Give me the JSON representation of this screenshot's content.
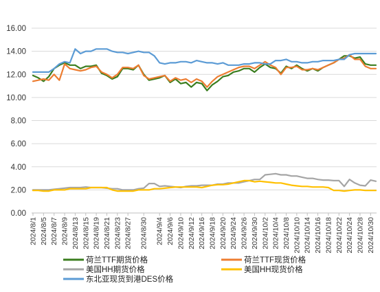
{
  "chart_data": {
    "type": "line",
    "title": "",
    "xlabel": "",
    "ylabel": "",
    "ylim": [
      0,
      16
    ],
    "y_ticks": [
      "0.00",
      "2.00",
      "4.00",
      "6.00",
      "8.00",
      "10.00",
      "12.00",
      "14.00",
      "16.00"
    ],
    "grid": "horizontal",
    "legend_position": "bottom",
    "x_tick_labels": [
      "2024/8/1",
      "2024/8/5",
      "2024/8/7",
      "2024/8/9",
      "2024/8/13",
      "2024/8/15",
      "2024/8/19",
      "2024/8/21",
      "2024/8/23",
      "2024/8/27",
      "2024/8/30",
      "2024/9/4",
      "2024/9/6",
      "2024/9/10",
      "2024/9/12",
      "2024/9/16",
      "2024/9/18",
      "2024/9/20",
      "2024/9/24",
      "2024/9/26",
      "2024/9/30",
      "2024/10/2",
      "2024/10/4",
      "2024/10/8",
      "2024/10/10",
      "2024/10/14",
      "2024/10/16",
      "2024/10/18",
      "2024/10/22",
      "2024/10/24",
      "2024/10/28",
      "2024/10/30"
    ],
    "x": [
      "2024/8/1",
      "2024/8/2",
      "2024/8/5",
      "2024/8/6",
      "2024/8/7",
      "2024/8/8",
      "2024/8/9",
      "2024/8/12",
      "2024/8/13",
      "2024/8/14",
      "2024/8/15",
      "2024/8/16",
      "2024/8/19",
      "2024/8/20",
      "2024/8/21",
      "2024/8/22",
      "2024/8/23",
      "2024/8/26",
      "2024/8/27",
      "2024/8/28",
      "2024/8/29",
      "2024/8/30",
      "2024/9/2",
      "2024/9/3",
      "2024/9/4",
      "2024/9/5",
      "2024/9/6",
      "2024/9/9",
      "2024/9/10",
      "2024/9/11",
      "2024/9/12",
      "2024/9/13",
      "2024/9/16",
      "2024/9/17",
      "2024/9/18",
      "2024/9/19",
      "2024/9/20",
      "2024/9/23",
      "2024/9/24",
      "2024/9/25",
      "2024/9/26",
      "2024/9/27",
      "2024/9/30",
      "2024/10/1",
      "2024/10/2",
      "2024/10/3",
      "2024/10/4",
      "2024/10/7",
      "2024/10/8",
      "2024/10/9",
      "2024/10/10",
      "2024/10/11",
      "2024/10/14",
      "2024/10/15",
      "2024/10/16",
      "2024/10/17",
      "2024/10/18",
      "2024/10/21",
      "2024/10/22",
      "2024/10/23",
      "2024/10/24",
      "2024/10/25",
      "2024/10/28",
      "2024/10/29",
      "2024/10/30",
      "2024/10/31"
    ],
    "series": [
      {
        "name": "荷兰TTF期货价格",
        "color": "#3a7d1e",
        "width": 2.2,
        "values": [
          11.9,
          11.7,
          11.4,
          11.8,
          12.5,
          12.8,
          13.0,
          12.8,
          12.8,
          12.5,
          12.7,
          12.7,
          12.8,
          12.1,
          11.9,
          11.6,
          11.8,
          12.5,
          12.5,
          12.4,
          12.8,
          12.0,
          11.5,
          11.6,
          11.7,
          11.9,
          11.3,
          11.6,
          11.2,
          11.3,
          10.9,
          11.3,
          11.2,
          10.6,
          11.1,
          11.4,
          11.8,
          11.9,
          12.2,
          12.3,
          12.5,
          12.5,
          12.2,
          12.6,
          12.9,
          12.6,
          12.5,
          12.1,
          12.7,
          12.5,
          12.8,
          12.5,
          12.3,
          12.5,
          12.3,
          12.6,
          12.8,
          13.0,
          13.3,
          13.6,
          13.6,
          13.4,
          13.5,
          12.9,
          12.8,
          12.8
        ]
      },
      {
        "name": "荷兰TTF现货价格",
        "color": "#ed7d31",
        "width": 2.2,
        "values": [
          11.4,
          11.5,
          11.6,
          11.5,
          12.0,
          11.5,
          12.9,
          12.5,
          12.4,
          12.3,
          12.4,
          12.6,
          12.7,
          12.2,
          12.0,
          11.7,
          12.0,
          12.6,
          12.6,
          12.5,
          12.8,
          11.9,
          11.6,
          11.7,
          11.8,
          11.9,
          11.4,
          11.7,
          11.5,
          11.6,
          11.3,
          11.6,
          11.4,
          10.9,
          11.4,
          11.8,
          12.0,
          12.2,
          12.4,
          12.6,
          12.7,
          12.7,
          12.5,
          12.8,
          13.1,
          12.8,
          12.6,
          12.0,
          12.6,
          12.6,
          12.7,
          12.4,
          12.4,
          12.5,
          12.4,
          12.6,
          12.8,
          13.0,
          13.3,
          13.4,
          13.7,
          13.3,
          13.3,
          12.7,
          12.5,
          12.5
        ]
      },
      {
        "name": "美国HH期货价格",
        "color": "#a5a5a5",
        "width": 2.2,
        "values": [
          2.0,
          2.0,
          2.0,
          2.0,
          2.05,
          2.1,
          2.15,
          2.2,
          2.2,
          2.2,
          2.25,
          2.2,
          2.2,
          2.2,
          2.15,
          2.1,
          2.1,
          2.0,
          2.0,
          2.0,
          2.1,
          2.15,
          2.55,
          2.55,
          2.3,
          2.35,
          2.3,
          2.25,
          2.2,
          2.3,
          2.35,
          2.35,
          2.4,
          2.4,
          2.4,
          2.5,
          2.5,
          2.6,
          2.6,
          2.6,
          2.7,
          2.8,
          2.9,
          2.9,
          3.3,
          3.35,
          3.4,
          3.3,
          3.3,
          3.2,
          3.2,
          3.1,
          3.0,
          3.0,
          2.9,
          2.85,
          2.85,
          2.8,
          2.8,
          2.3,
          2.9,
          2.6,
          2.4,
          2.35,
          2.85,
          2.75
        ]
      },
      {
        "name": "美国HH现货价格",
        "color": "#ffc000",
        "width": 2.2,
        "values": [
          1.95,
          1.95,
          1.9,
          1.9,
          2.0,
          2.0,
          2.0,
          2.1,
          2.1,
          2.1,
          2.1,
          2.2,
          2.2,
          2.2,
          2.2,
          2.0,
          1.9,
          1.9,
          1.9,
          1.9,
          2.0,
          2.0,
          2.0,
          2.1,
          2.1,
          2.15,
          2.2,
          2.25,
          2.25,
          2.25,
          2.25,
          2.25,
          2.2,
          2.3,
          2.4,
          2.45,
          2.45,
          2.5,
          2.6,
          2.7,
          2.8,
          2.8,
          2.7,
          2.75,
          2.7,
          2.65,
          2.6,
          2.6,
          2.5,
          2.4,
          2.35,
          2.3,
          2.3,
          2.25,
          2.25,
          2.25,
          2.2,
          1.95,
          1.95,
          1.9,
          1.95,
          2.0,
          2.0,
          1.95,
          1.95,
          1.95
        ]
      },
      {
        "name": "东北亚现货到港DES价格",
        "color": "#5b9bd5",
        "width": 2.2,
        "values": [
          12.2,
          12.2,
          12.2,
          12.2,
          12.5,
          12.9,
          13.1,
          13.0,
          14.2,
          13.8,
          14.0,
          14.0,
          14.2,
          14.2,
          14.2,
          14.0,
          13.9,
          13.9,
          13.8,
          13.9,
          14.0,
          13.9,
          13.9,
          13.6,
          13.0,
          12.9,
          13.0,
          13.0,
          13.1,
          13.1,
          13.0,
          13.2,
          13.1,
          13.0,
          13.0,
          12.9,
          13.0,
          12.8,
          12.8,
          12.8,
          12.9,
          12.9,
          13.0,
          13.0,
          12.9,
          12.9,
          13.2,
          13.2,
          13.3,
          13.1,
          13.1,
          13.0,
          13.0,
          13.1,
          13.1,
          13.2,
          13.2,
          13.2,
          13.3,
          13.3,
          13.7,
          13.8,
          13.8,
          13.8,
          13.8,
          13.8
        ]
      }
    ]
  }
}
